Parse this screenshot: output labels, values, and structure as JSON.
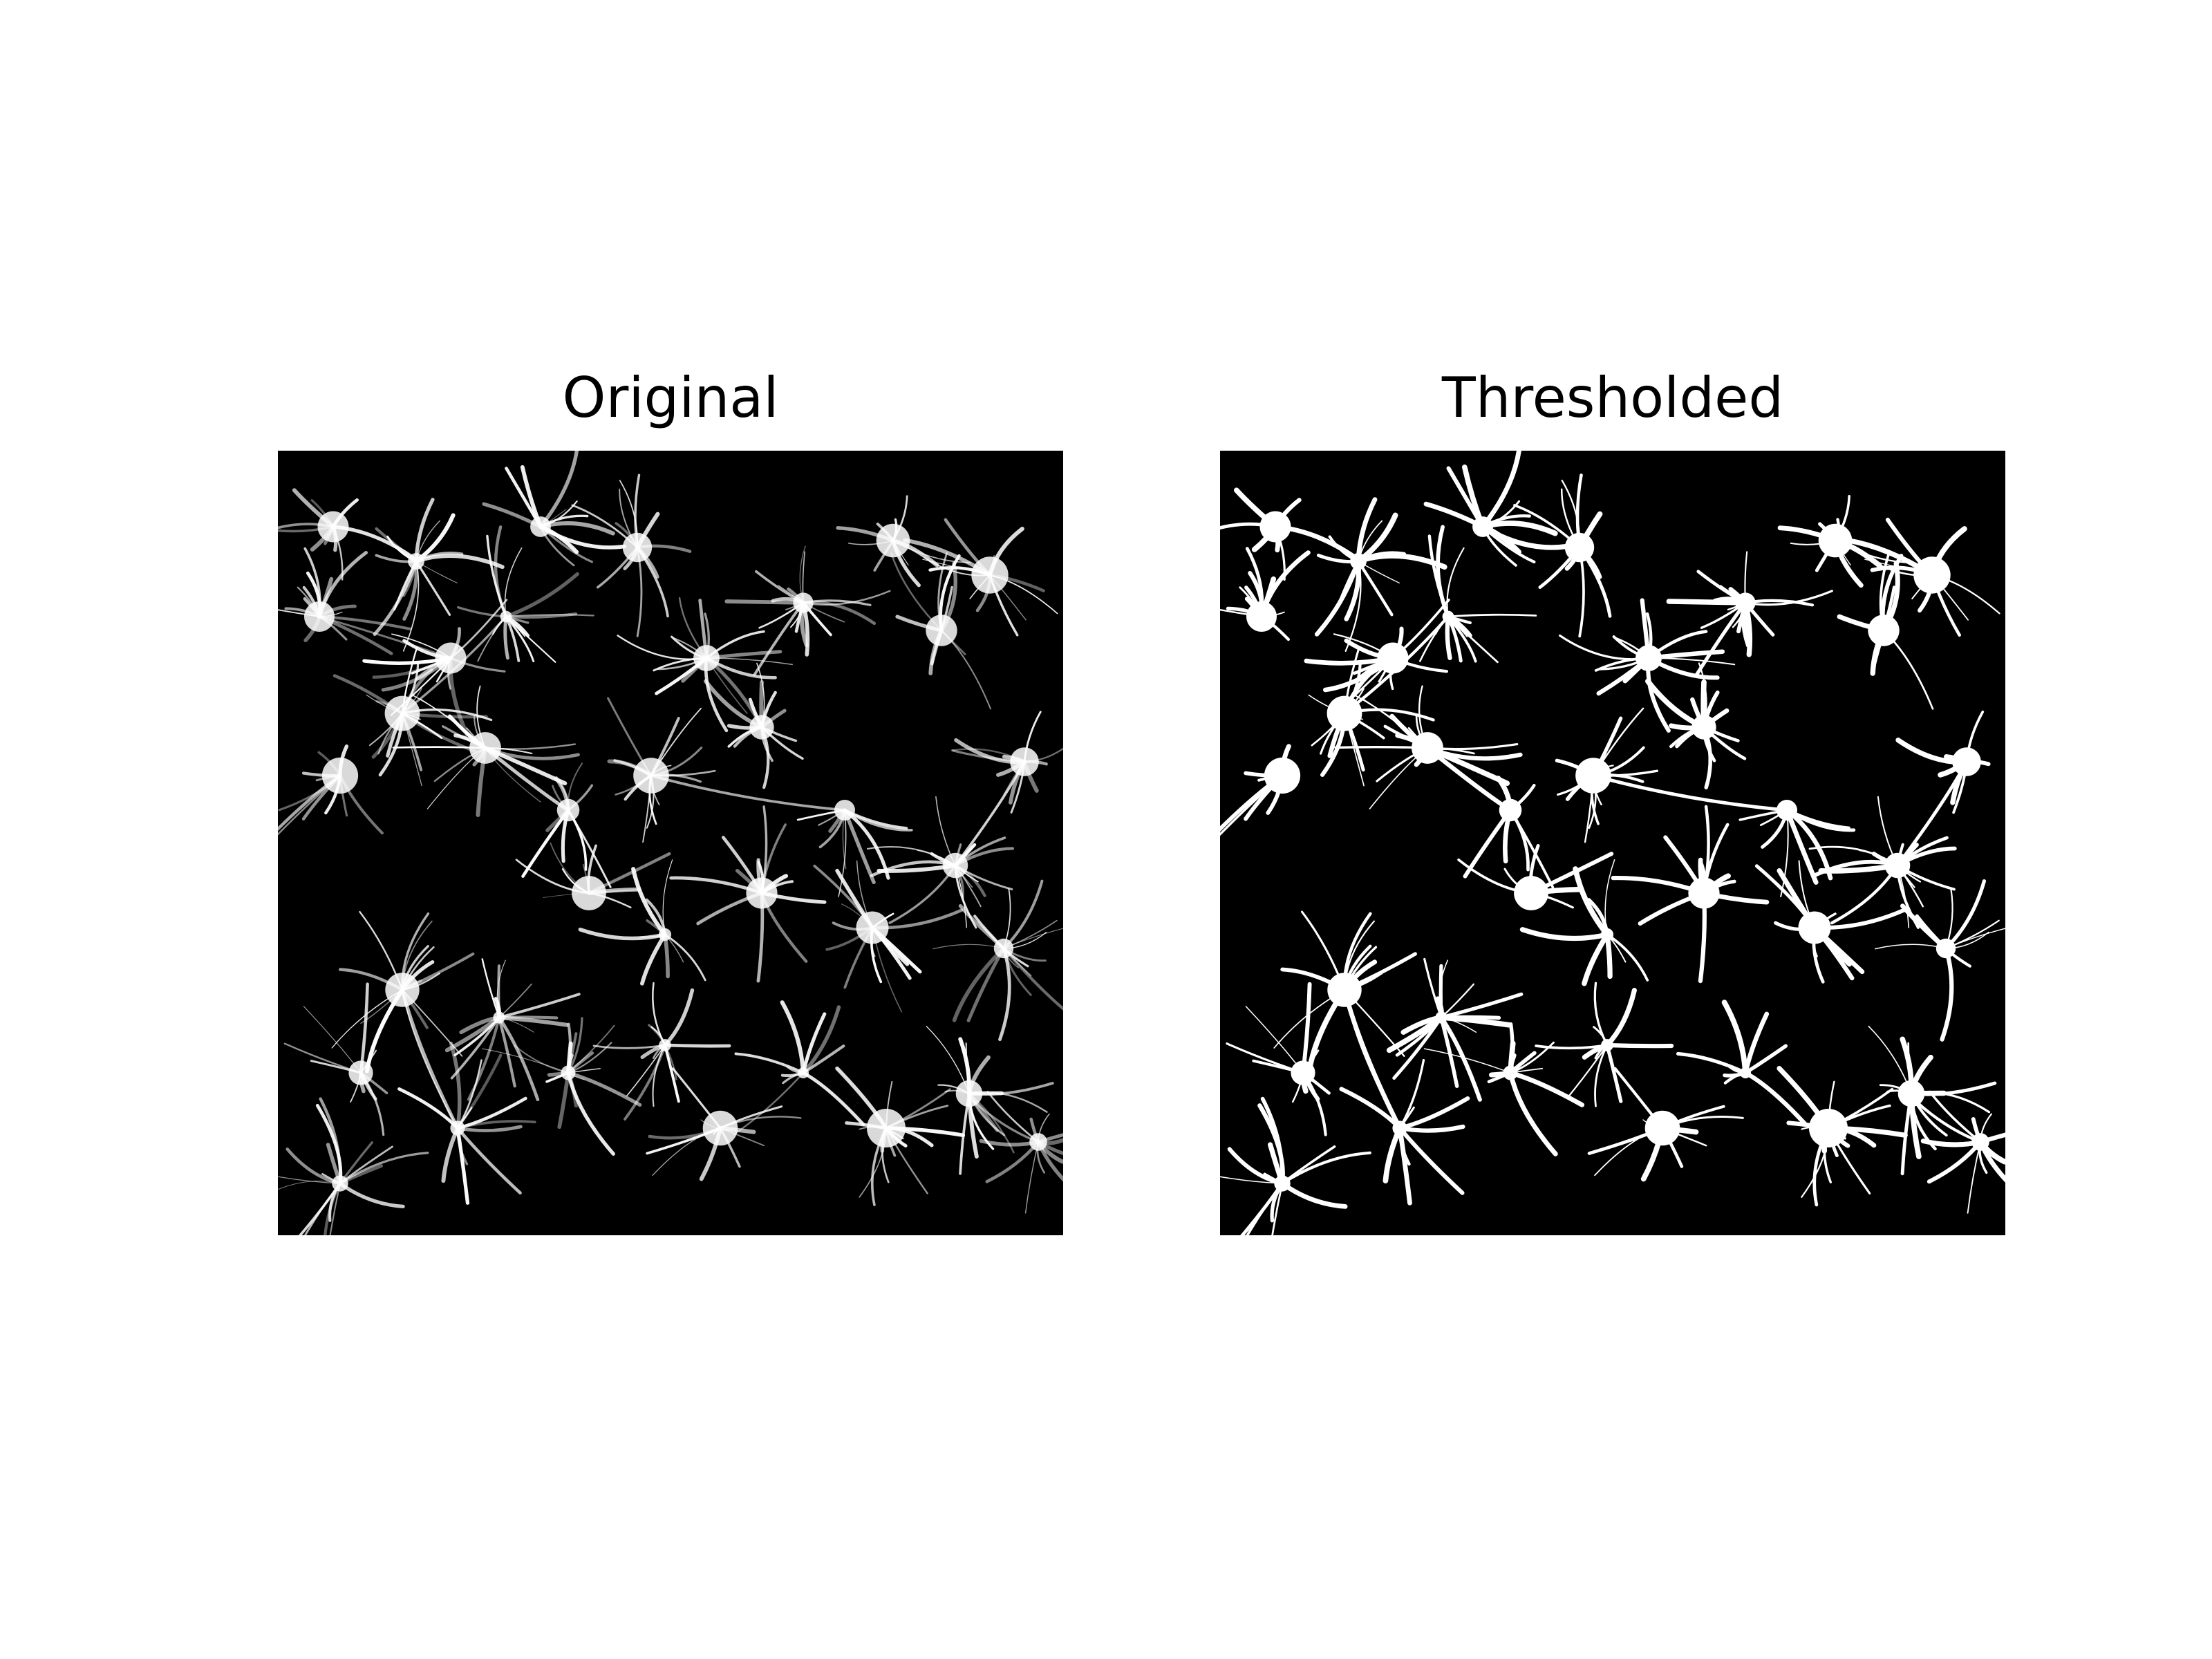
{
  "figure": {
    "panels": [
      {
        "title": "Original"
      },
      {
        "title": "Thresholded"
      }
    ]
  },
  "colors": {
    "background": "#ffffff",
    "image_background": "#000000",
    "foreground": "#ffffff"
  }
}
